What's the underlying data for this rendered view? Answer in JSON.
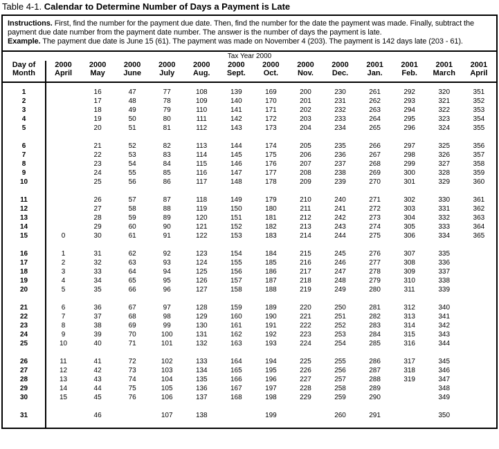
{
  "title": {
    "prefix": "Table 4-1.",
    "text": "Calendar to Determine Number of Days a Payment is Late"
  },
  "instructions": {
    "label": "Instructions.",
    "text": "First, find the number for the payment due date. Then, find the number for the date the payment was made. Finally, subtract the payment due date number from the payment date number. The answer is the number of days the payment is late.",
    "example_label": "Example.",
    "example_text": "The payment due date is June 15 (61). The payment was made on November 4 (203). The payment is 142 days late (203 - 61)."
  },
  "colors": {
    "text": "#000000",
    "background": "#ffffff",
    "border": "#000000"
  },
  "table": {
    "span_header": "Tax Year 2000",
    "day_header": {
      "line1": "Day of",
      "line2": "Month"
    },
    "columns": [
      {
        "year": "2000",
        "month": "April"
      },
      {
        "year": "2000",
        "month": "May"
      },
      {
        "year": "2000",
        "month": "June"
      },
      {
        "year": "2000",
        "month": "July"
      },
      {
        "year": "2000",
        "month": "Aug."
      },
      {
        "year": "2000",
        "month": "Sept."
      },
      {
        "year": "2000",
        "month": "Oct."
      },
      {
        "year": "2000",
        "month": "Nov."
      },
      {
        "year": "2000",
        "month": "Dec."
      },
      {
        "year": "2001",
        "month": "Jan."
      },
      {
        "year": "2001",
        "month": "Feb."
      },
      {
        "year": "2001",
        "month": "March"
      },
      {
        "year": "2001",
        "month": "April"
      }
    ],
    "groups": [
      {
        "rows": [
          {
            "day": "1",
            "cells": [
              "",
              "16",
              "47",
              "77",
              "108",
              "139",
              "169",
              "200",
              "230",
              "261",
              "292",
              "320",
              "351"
            ]
          },
          {
            "day": "2",
            "cells": [
              "",
              "17",
              "48",
              "78",
              "109",
              "140",
              "170",
              "201",
              "231",
              "262",
              "293",
              "321",
              "352"
            ]
          },
          {
            "day": "3",
            "cells": [
              "",
              "18",
              "49",
              "79",
              "110",
              "141",
              "171",
              "202",
              "232",
              "263",
              "294",
              "322",
              "353"
            ]
          },
          {
            "day": "4",
            "cells": [
              "",
              "19",
              "50",
              "80",
              "111",
              "142",
              "172",
              "203",
              "233",
              "264",
              "295",
              "323",
              "354"
            ]
          },
          {
            "day": "5",
            "cells": [
              "",
              "20",
              "51",
              "81",
              "112",
              "143",
              "173",
              "204",
              "234",
              "265",
              "296",
              "324",
              "355"
            ]
          }
        ]
      },
      {
        "rows": [
          {
            "day": "6",
            "cells": [
              "",
              "21",
              "52",
              "82",
              "113",
              "144",
              "174",
              "205",
              "235",
              "266",
              "297",
              "325",
              "356"
            ]
          },
          {
            "day": "7",
            "cells": [
              "",
              "22",
              "53",
              "83",
              "114",
              "145",
              "175",
              "206",
              "236",
              "267",
              "298",
              "326",
              "357"
            ]
          },
          {
            "day": "8",
            "cells": [
              "",
              "23",
              "54",
              "84",
              "115",
              "146",
              "176",
              "207",
              "237",
              "268",
              "299",
              "327",
              "358"
            ]
          },
          {
            "day": "9",
            "cells": [
              "",
              "24",
              "55",
              "85",
              "116",
              "147",
              "177",
              "208",
              "238",
              "269",
              "300",
              "328",
              "359"
            ]
          },
          {
            "day": "10",
            "cells": [
              "",
              "25",
              "56",
              "86",
              "117",
              "148",
              "178",
              "209",
              "239",
              "270",
              "301",
              "329",
              "360"
            ]
          }
        ]
      },
      {
        "rows": [
          {
            "day": "11",
            "cells": [
              "",
              "26",
              "57",
              "87",
              "118",
              "149",
              "179",
              "210",
              "240",
              "271",
              "302",
              "330",
              "361"
            ]
          },
          {
            "day": "12",
            "cells": [
              "",
              "27",
              "58",
              "88",
              "119",
              "150",
              "180",
              "211",
              "241",
              "272",
              "303",
              "331",
              "362"
            ]
          },
          {
            "day": "13",
            "cells": [
              "",
              "28",
              "59",
              "89",
              "120",
              "151",
              "181",
              "212",
              "242",
              "273",
              "304",
              "332",
              "363"
            ]
          },
          {
            "day": "14",
            "cells": [
              "",
              "29",
              "60",
              "90",
              "121",
              "152",
              "182",
              "213",
              "243",
              "274",
              "305",
              "333",
              "364"
            ]
          },
          {
            "day": "15",
            "cells": [
              "0",
              "30",
              "61",
              "91",
              "122",
              "153",
              "183",
              "214",
              "244",
              "275",
              "306",
              "334",
              "365"
            ]
          }
        ]
      },
      {
        "rows": [
          {
            "day": "16",
            "cells": [
              "1",
              "31",
              "62",
              "92",
              "123",
              "154",
              "184",
              "215",
              "245",
              "276",
              "307",
              "335",
              ""
            ]
          },
          {
            "day": "17",
            "cells": [
              "2",
              "32",
              "63",
              "93",
              "124",
              "155",
              "185",
              "216",
              "246",
              "277",
              "308",
              "336",
              ""
            ]
          },
          {
            "day": "18",
            "cells": [
              "3",
              "33",
              "64",
              "94",
              "125",
              "156",
              "186",
              "217",
              "247",
              "278",
              "309",
              "337",
              ""
            ]
          },
          {
            "day": "19",
            "cells": [
              "4",
              "34",
              "65",
              "95",
              "126",
              "157",
              "187",
              "218",
              "248",
              "279",
              "310",
              "338",
              ""
            ]
          },
          {
            "day": "20",
            "cells": [
              "5",
              "35",
              "66",
              "96",
              "127",
              "158",
              "188",
              "219",
              "249",
              "280",
              "311",
              "339",
              ""
            ]
          }
        ]
      },
      {
        "rows": [
          {
            "day": "21",
            "cells": [
              "6",
              "36",
              "67",
              "97",
              "128",
              "159",
              "189",
              "220",
              "250",
              "281",
              "312",
              "340",
              ""
            ]
          },
          {
            "day": "22",
            "cells": [
              "7",
              "37",
              "68",
              "98",
              "129",
              "160",
              "190",
              "221",
              "251",
              "282",
              "313",
              "341",
              ""
            ]
          },
          {
            "day": "23",
            "cells": [
              "8",
              "38",
              "69",
              "99",
              "130",
              "161",
              "191",
              "222",
              "252",
              "283",
              "314",
              "342",
              ""
            ]
          },
          {
            "day": "24",
            "cells": [
              "9",
              "39",
              "70",
              "100",
              "131",
              "162",
              "192",
              "223",
              "253",
              "284",
              "315",
              "343",
              ""
            ]
          },
          {
            "day": "25",
            "cells": [
              "10",
              "40",
              "71",
              "101",
              "132",
              "163",
              "193",
              "224",
              "254",
              "285",
              "316",
              "344",
              ""
            ]
          }
        ]
      },
      {
        "rows": [
          {
            "day": "26",
            "cells": [
              "11",
              "41",
              "72",
              "102",
              "133",
              "164",
              "194",
              "225",
              "255",
              "286",
              "317",
              "345",
              ""
            ]
          },
          {
            "day": "27",
            "cells": [
              "12",
              "42",
              "73",
              "103",
              "134",
              "165",
              "195",
              "226",
              "256",
              "287",
              "318",
              "346",
              ""
            ]
          },
          {
            "day": "28",
            "cells": [
              "13",
              "43",
              "74",
              "104",
              "135",
              "166",
              "196",
              "227",
              "257",
              "288",
              "319",
              "347",
              ""
            ]
          },
          {
            "day": "29",
            "cells": [
              "14",
              "44",
              "75",
              "105",
              "136",
              "167",
              "197",
              "228",
              "258",
              "289",
              "",
              "348",
              ""
            ]
          },
          {
            "day": "30",
            "cells": [
              "15",
              "45",
              "76",
              "106",
              "137",
              "168",
              "198",
              "229",
              "259",
              "290",
              "",
              "349",
              ""
            ]
          }
        ]
      },
      {
        "rows": [
          {
            "day": "31",
            "cells": [
              "",
              "46",
              "",
              "107",
              "138",
              "",
              "199",
              "",
              "260",
              "291",
              "",
              "350",
              ""
            ]
          }
        ]
      }
    ]
  }
}
